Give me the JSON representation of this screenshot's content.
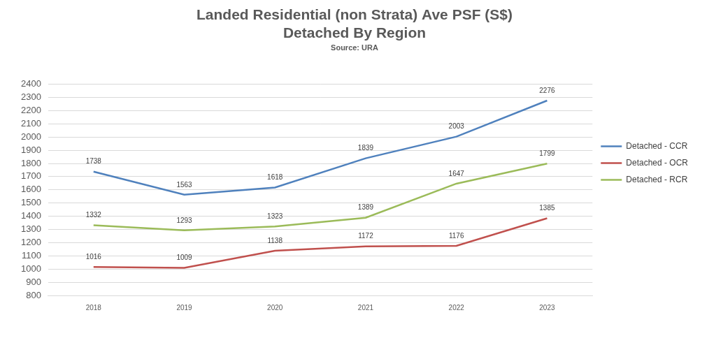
{
  "chart_data": {
    "type": "line",
    "title": [
      "Landed Residential (non Strata) Ave PSF (S$)",
      "Detached By Region"
    ],
    "subtitle": "Source: URA",
    "categories": [
      "2018",
      "2019",
      "2020",
      "2021",
      "2022",
      "2023"
    ],
    "series": [
      {
        "name": "Detached - CCR",
        "color": "#4f81bd",
        "marker": "none",
        "values": [
          1738,
          1563,
          1618,
          1839,
          2003,
          2276
        ]
      },
      {
        "name": "Detached - OCR",
        "color": "#c0504d",
        "marker": "none",
        "values": [
          1016,
          1009,
          1138,
          1172,
          1176,
          1385
        ]
      },
      {
        "name": "Detached - RCR",
        "color": "#9bbb59",
        "marker": "none",
        "values": [
          1332,
          1293,
          1323,
          1389,
          1647,
          1799
        ]
      }
    ],
    "ylim": [
      800,
      2400
    ],
    "yticks": [
      800,
      900,
      1000,
      1100,
      1200,
      1300,
      1400,
      1500,
      1600,
      1700,
      1800,
      1900,
      2000,
      2100,
      2200,
      2300,
      2400
    ],
    "grid": true,
    "legend": "right",
    "data_labels": true
  }
}
